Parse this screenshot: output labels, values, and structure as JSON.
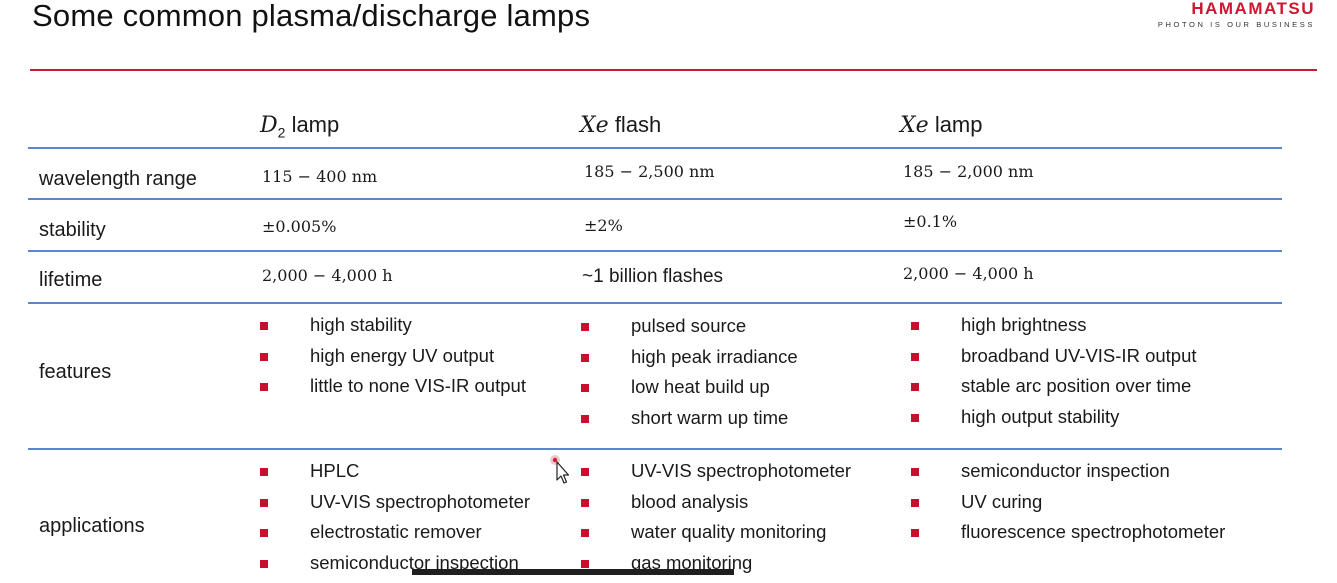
{
  "title": "Some common plasma/discharge lamps",
  "logo": {
    "name": "HAMAMATSU",
    "tagline": "PHOTON IS OUR BUSINESS"
  },
  "columns": [
    {
      "symbol": "D",
      "subscript": "2",
      "label": "lamp"
    },
    {
      "symbol": "Xe",
      "label": "flash"
    },
    {
      "symbol": "Xe",
      "label": "lamp"
    }
  ],
  "rows": {
    "wavelength": {
      "label": "wavelength range",
      "values": [
        "115 − 400 nm",
        "185 − 2,500 nm",
        "185 − 2,000 nm"
      ]
    },
    "stability": {
      "label": "stability",
      "values": [
        "±0.005%",
        "±2%",
        "±0.1%"
      ]
    },
    "lifetime": {
      "label": "lifetime",
      "values": [
        "2,000 − 4,000 h",
        "~1 billion flashes",
        "2,000 − 4,000 h"
      ]
    },
    "features": {
      "label": "features",
      "lists": [
        [
          "high stability",
          "high energy UV output",
          "little to none VIS-IR output"
        ],
        [
          "pulsed source",
          "high peak irradiance",
          "low heat build up",
          "short warm up time"
        ],
        [
          "high brightness",
          "broadband UV-VIS-IR output",
          "stable arc position over time",
          "high output stability"
        ]
      ]
    },
    "applications": {
      "label": "applications",
      "lists": [
        [
          "HPLC",
          "UV-VIS spectrophotometer",
          "electrostatic remover",
          "semiconductor inspection"
        ],
        [
          "UV-VIS spectrophotometer",
          "blood analysis",
          "water quality monitoring",
          "gas monitoring"
        ],
        [
          "semiconductor inspection",
          "UV curing",
          "fluorescence spectrophotometer"
        ]
      ]
    }
  },
  "colors": {
    "accent_red": "#cc1830",
    "rule_blue": "#5b86c8",
    "bullet_red": "#c8102e"
  }
}
